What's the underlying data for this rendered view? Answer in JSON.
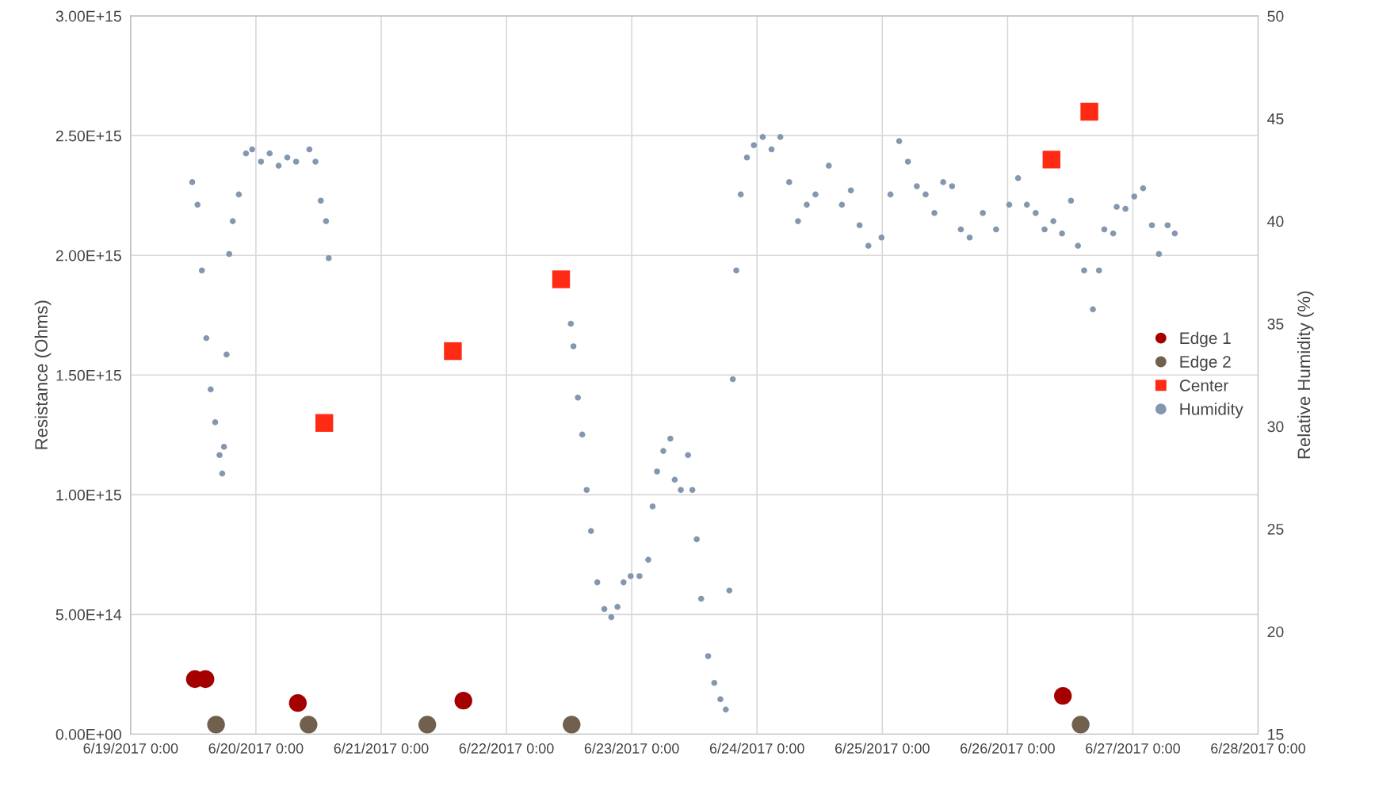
{
  "chart_data": {
    "type": "scatter",
    "ylabel": "Resistance (Ohms)",
    "y2label": "Relative Humidity (%)",
    "xlim": [
      "2017-06-19T00:00",
      "2017-06-28T00:00"
    ],
    "xticks": [
      {
        "value": "2017-06-19T00:00",
        "label": "6/19/2017 0:00"
      },
      {
        "value": "2017-06-20T00:00",
        "label": "6/20/2017 0:00"
      },
      {
        "value": "2017-06-21T00:00",
        "label": "6/21/2017 0:00"
      },
      {
        "value": "2017-06-22T00:00",
        "label": "6/22/2017 0:00"
      },
      {
        "value": "2017-06-23T00:00",
        "label": "6/23/2017 0:00"
      },
      {
        "value": "2017-06-24T00:00",
        "label": "6/24/2017 0:00"
      },
      {
        "value": "2017-06-25T00:00",
        "label": "6/25/2017 0:00"
      },
      {
        "value": "2017-06-26T00:00",
        "label": "6/26/2017 0:00"
      },
      {
        "value": "2017-06-27T00:00",
        "label": "6/27/2017 0:00"
      },
      {
        "value": "2017-06-28T00:00",
        "label": "6/28/2017 0:00"
      }
    ],
    "ylim": [
      0,
      3000000000000000.0
    ],
    "yticks": [
      {
        "value": 0,
        "label": "0.00E+00"
      },
      {
        "value": 500000000000000.0,
        "label": "5.00E+14"
      },
      {
        "value": 1000000000000000.0,
        "label": "1.00E+15"
      },
      {
        "value": 1500000000000000.0,
        "label": "1.50E+15"
      },
      {
        "value": 2000000000000000.0,
        "label": "2.00E+15"
      },
      {
        "value": 2500000000000000.0,
        "label": "2.50E+15"
      },
      {
        "value": 3000000000000000.0,
        "label": "3.00E+15"
      }
    ],
    "y2lim": [
      15,
      50
    ],
    "y2ticks": [
      15,
      20,
      25,
      30,
      35,
      40,
      45,
      50
    ],
    "grid": true,
    "legend": "right",
    "series": [
      {
        "name": "Edge 1",
        "color": "#a50000",
        "marker": "circle",
        "x": [
          "2017-06-19T12:19",
          "2017-06-19T14:20",
          "2017-06-20T08:02",
          "2017-06-21T15:45",
          "2017-06-26T10:36"
        ],
        "values": [
          230000000000000.0,
          230000000000000.0,
          130000000000000.0,
          140000000000000.0,
          160000000000000.0
        ]
      },
      {
        "name": "Edge 2",
        "color": "#72604f",
        "marker": "circle",
        "x": [
          "2017-06-19T16:22",
          "2017-06-20T10:05",
          "2017-06-21T08:50",
          "2017-06-22T12:29",
          "2017-06-26T14:00"
        ],
        "values": [
          40000000000000.0,
          40000000000000.0,
          40000000000000.0,
          40000000000000.0,
          40000000000000.0
        ]
      },
      {
        "name": "Center",
        "color": "#ff2a14",
        "marker": "square",
        "x": [
          "2017-06-20T13:06",
          "2017-06-21T13:44",
          "2017-06-22T10:28",
          "2017-06-26T08:25",
          "2017-06-26T15:40"
        ],
        "values": [
          1300000000000000.0,
          1600000000000000.0,
          1900000000000000.0,
          2400000000000000.0,
          2600000000000000.0
        ]
      },
      {
        "name": "Humidity",
        "color": "#8497b0",
        "marker": "circle",
        "axis": "y2",
        "x": [
          "2017-06-19T11:48",
          "2017-06-19T12:49",
          "2017-06-19T13:39",
          "2017-06-19T14:30",
          "2017-06-19T15:20",
          "2017-06-19T16:12",
          "2017-06-19T17:02",
          "2017-06-19T17:33",
          "2017-06-19T17:53",
          "2017-06-19T18:23",
          "2017-06-19T18:53",
          "2017-06-19T19:34",
          "2017-06-19T20:44",
          "2017-06-19T22:06",
          "2017-06-19T23:17",
          "2017-06-20T00:58",
          "2017-06-20T02:38",
          "2017-06-20T04:21",
          "2017-06-20T06:01",
          "2017-06-20T07:42",
          "2017-06-20T10:15",
          "2017-06-20T11:25",
          "2017-06-20T12:26",
          "2017-06-20T13:26",
          "2017-06-20T13:57",
          "2017-06-22T12:20",
          "2017-06-22T12:50",
          "2017-06-22T13:41",
          "2017-06-22T14:31",
          "2017-06-22T15:22",
          "2017-06-22T16:12",
          "2017-06-22T17:24",
          "2017-06-22T18:45",
          "2017-06-22T20:05",
          "2017-06-22T21:16",
          "2017-06-22T22:26",
          "2017-06-22T23:48",
          "2017-06-23T01:29",
          "2017-06-23T03:10",
          "2017-06-23T04:00",
          "2017-06-23T04:51",
          "2017-06-23T06:03",
          "2017-06-23T07:24",
          "2017-06-23T08:14",
          "2017-06-23T09:24",
          "2017-06-23T10:47",
          "2017-06-23T11:37",
          "2017-06-23T12:27",
          "2017-06-23T13:18",
          "2017-06-23T14:38",
          "2017-06-23T15:49",
          "2017-06-23T16:59",
          "2017-06-23T18:01",
          "2017-06-23T18:42",
          "2017-06-23T19:22",
          "2017-06-23T20:02",
          "2017-06-23T20:53",
          "2017-06-23T22:04",
          "2017-06-23T23:24",
          "2017-06-24T01:06",
          "2017-06-24T02:47",
          "2017-06-24T04:28",
          "2017-06-24T06:10",
          "2017-06-24T07:51",
          "2017-06-24T09:32",
          "2017-06-24T11:12",
          "2017-06-24T13:45",
          "2017-06-24T16:16",
          "2017-06-24T17:59",
          "2017-06-24T19:39",
          "2017-06-24T21:20",
          "2017-06-24T23:51",
          "2017-06-25T01:34",
          "2017-06-25T03:14",
          "2017-06-25T04:55",
          "2017-06-25T06:37",
          "2017-06-25T08:18",
          "2017-06-25T09:59",
          "2017-06-25T11:40",
          "2017-06-25T13:22",
          "2017-06-25T15:03",
          "2017-06-25T16:44",
          "2017-06-25T19:16",
          "2017-06-25T21:48",
          "2017-06-26T00:19",
          "2017-06-26T02:01",
          "2017-06-26T03:42",
          "2017-06-26T05:23",
          "2017-06-26T07:05",
          "2017-06-26T08:46",
          "2017-06-26T10:26",
          "2017-06-26T12:09",
          "2017-06-26T13:29",
          "2017-06-26T14:40",
          "2017-06-26T16:21",
          "2017-06-26T17:31",
          "2017-06-26T18:32",
          "2017-06-26T20:14",
          "2017-06-26T20:54",
          "2017-06-26T22:35",
          "2017-06-27T00:16",
          "2017-06-27T01:58",
          "2017-06-27T03:39",
          "2017-06-27T05:00",
          "2017-06-27T06:40",
          "2017-06-27T08:02"
        ],
        "values": [
          41.9,
          40.8,
          37.6,
          34.3,
          31.8,
          30.2,
          28.6,
          27.7,
          29.0,
          33.5,
          38.4,
          40.0,
          41.3,
          43.3,
          43.5,
          42.9,
          43.3,
          42.7,
          43.1,
          42.9,
          43.5,
          42.9,
          41.0,
          40.0,
          38.2,
          35.0,
          33.9,
          31.4,
          29.6,
          26.9,
          24.9,
          22.4,
          21.1,
          20.7,
          21.2,
          22.4,
          22.7,
          22.7,
          23.5,
          26.1,
          27.8,
          28.8,
          29.4,
          27.4,
          26.9,
          28.6,
          26.9,
          24.5,
          21.6,
          18.8,
          17.5,
          16.7,
          16.2,
          22.0,
          32.3,
          37.6,
          41.3,
          43.1,
          43.7,
          44.1,
          43.5,
          44.1,
          41.9,
          40.0,
          40.8,
          41.3,
          42.7,
          40.8,
          41.5,
          39.8,
          38.8,
          39.2,
          41.3,
          43.9,
          42.9,
          41.7,
          41.3,
          40.4,
          41.9,
          41.7,
          39.6,
          39.2,
          40.4,
          39.6,
          40.8,
          42.1,
          40.8,
          40.4,
          39.6,
          40.0,
          39.4,
          41.0,
          38.8,
          37.6,
          35.7,
          37.6,
          39.6,
          39.4,
          40.7,
          40.6,
          41.2,
          41.6,
          39.8,
          38.4,
          39.8,
          39.4
        ]
      }
    ]
  }
}
